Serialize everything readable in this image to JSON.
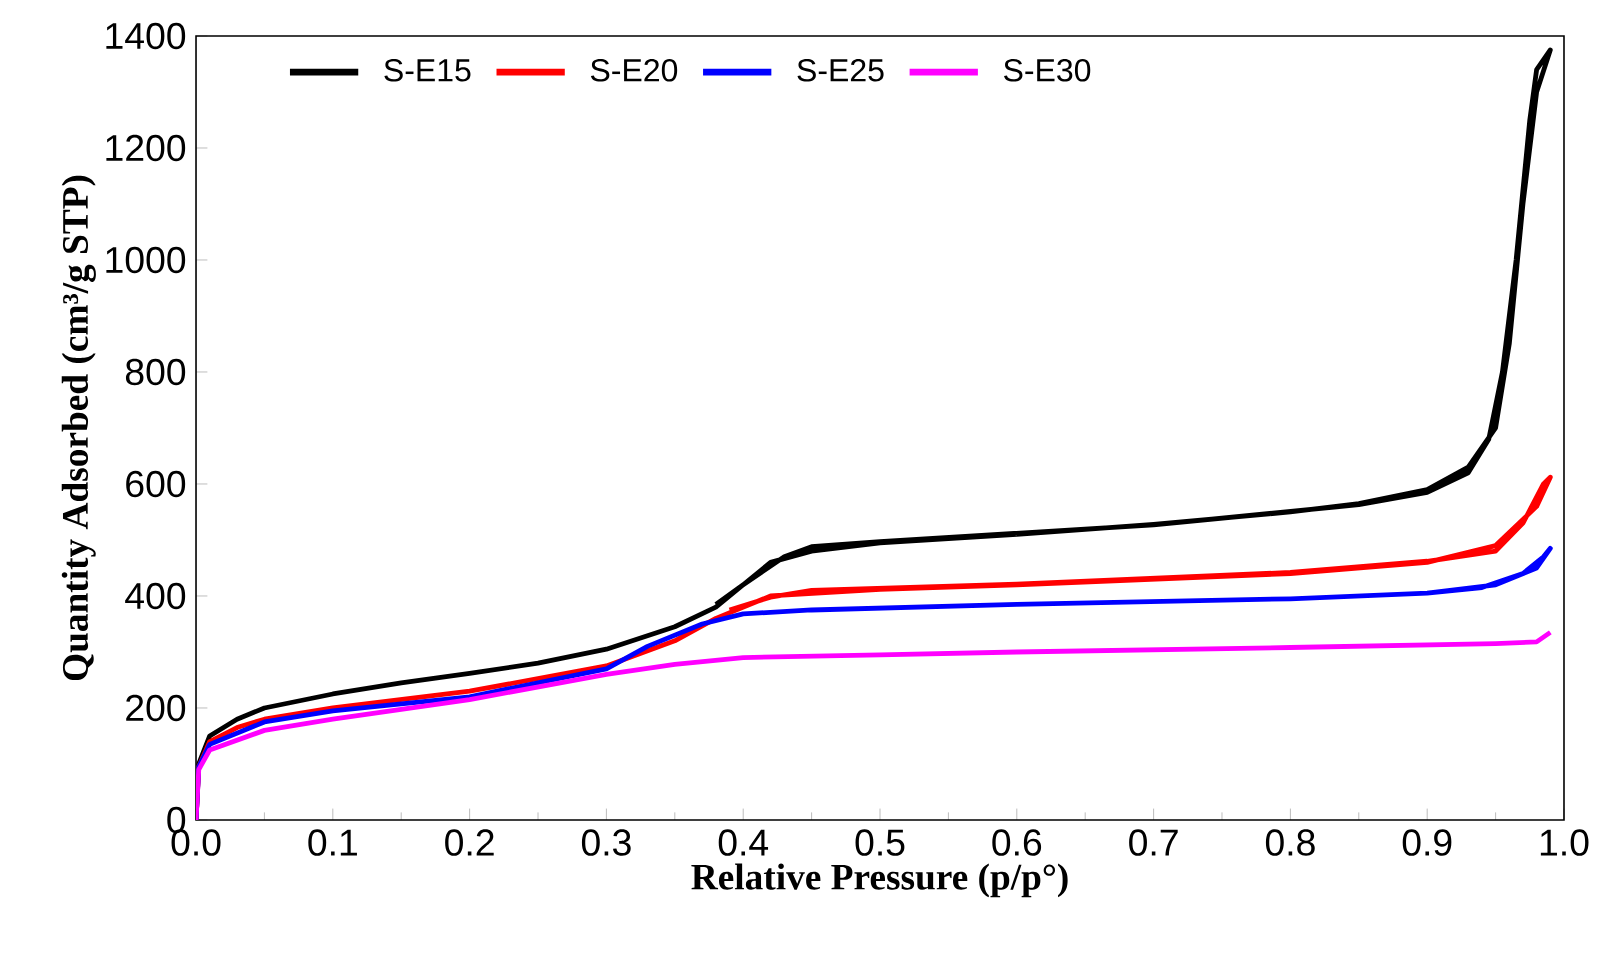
{
  "chart_data": {
    "type": "line",
    "xlabel": "Relative Pressure (p/p°)",
    "ylabel": "Quantity Adsorbed (cm³/g STP)",
    "xlim": [
      0,
      1.0
    ],
    "ylim": [
      0,
      1400
    ],
    "xticks": [
      {
        "value": 0,
        "label": "0.0"
      },
      {
        "value": 0.1,
        "label": "0.1"
      },
      {
        "value": 0.2,
        "label": "0.2"
      },
      {
        "value": 0.3,
        "label": "0.3"
      },
      {
        "value": 0.4,
        "label": "0.4"
      },
      {
        "value": 0.5,
        "label": "0.5"
      },
      {
        "value": 0.6,
        "label": "0.6"
      },
      {
        "value": 0.7,
        "label": "0.7"
      },
      {
        "value": 0.8,
        "label": "0.8"
      },
      {
        "value": 0.9,
        "label": "0.9"
      },
      {
        "value": 1.0,
        "label": "1.0"
      }
    ],
    "yticks": [
      0,
      200,
      400,
      600,
      800,
      1000,
      1200,
      1400
    ],
    "legend": "top left",
    "grid": false,
    "marker": "none",
    "line_style": "solid",
    "series": [
      {
        "name": "S-E15",
        "color": "#000000",
        "x": [
          0,
          0.002,
          0.01,
          0.03,
          0.05,
          0.1,
          0.15,
          0.2,
          0.25,
          0.3,
          0.35,
          0.38,
          0.42,
          0.45,
          0.5,
          0.6,
          0.7,
          0.8,
          0.85,
          0.9,
          0.93,
          0.95,
          0.96,
          0.97,
          0.98,
          0.99,
          0.98,
          0.975,
          0.965,
          0.955,
          0.945,
          0.93,
          0.9,
          0.85,
          0.7,
          0.5,
          0.45,
          0.43,
          0.4,
          0.38
        ],
        "values": [
          0,
          100,
          150,
          180,
          200,
          225,
          245,
          262,
          280,
          305,
          345,
          380,
          460,
          480,
          495,
          510,
          528,
          550,
          565,
          590,
          630,
          700,
          850,
          1100,
          1300,
          1375,
          1340,
          1250,
          1000,
          800,
          680,
          620,
          585,
          563,
          527,
          497,
          488,
          470,
          420,
          385
        ]
      },
      {
        "name": "S-E20",
        "color": "#ff0000",
        "x": [
          0,
          0.002,
          0.01,
          0.03,
          0.05,
          0.1,
          0.2,
          0.3,
          0.35,
          0.38,
          0.42,
          0.5,
          0.6,
          0.7,
          0.8,
          0.9,
          0.95,
          0.98,
          0.99,
          0.985,
          0.97,
          0.95,
          0.9,
          0.8,
          0.6,
          0.45,
          0.42,
          0.39
        ],
        "values": [
          0,
          95,
          140,
          165,
          180,
          200,
          230,
          275,
          320,
          360,
          400,
          412,
          420,
          430,
          440,
          460,
          490,
          560,
          612,
          600,
          530,
          480,
          462,
          442,
          421,
          410,
          398,
          375
        ]
      },
      {
        "name": "S-E25",
        "color": "#0000ff",
        "x": [
          0,
          0.002,
          0.01,
          0.05,
          0.1,
          0.2,
          0.3,
          0.33,
          0.37,
          0.4,
          0.45,
          0.6,
          0.8,
          0.9,
          0.95,
          0.98,
          0.99,
          0.985,
          0.97,
          0.94,
          0.9
        ],
        "values": [
          0,
          95,
          135,
          175,
          195,
          220,
          270,
          310,
          350,
          368,
          375,
          385,
          395,
          405,
          420,
          450,
          485,
          470,
          440,
          415,
          405
        ]
      },
      {
        "name": "S-E30",
        "color": "#ff00ff",
        "x": [
          0,
          0.002,
          0.01,
          0.05,
          0.1,
          0.2,
          0.3,
          0.35,
          0.4,
          0.5,
          0.6,
          0.8,
          0.95,
          0.98,
          0.99
        ],
        "values": [
          0,
          90,
          125,
          160,
          180,
          215,
          260,
          278,
          290,
          295,
          300,
          308,
          315,
          318,
          335
        ]
      }
    ]
  }
}
